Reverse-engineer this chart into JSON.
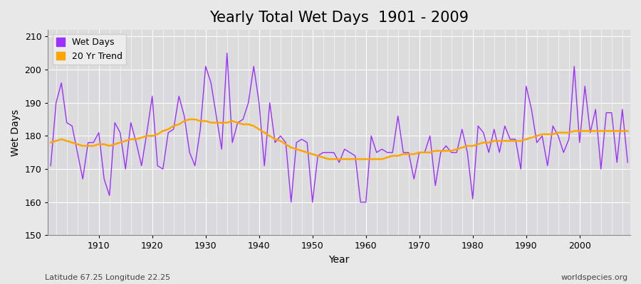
{
  "title": "Yearly Total Wet Days  1901 - 2009",
  "xlabel": "Year",
  "ylabel": "Wet Days",
  "footnote_left": "Latitude 67.25 Longitude 22.25",
  "footnote_right": "worldspecies.org",
  "years": [
    1901,
    1902,
    1903,
    1904,
    1905,
    1906,
    1907,
    1908,
    1909,
    1910,
    1911,
    1912,
    1913,
    1914,
    1915,
    1916,
    1917,
    1918,
    1919,
    1920,
    1921,
    1922,
    1923,
    1924,
    1925,
    1926,
    1927,
    1928,
    1929,
    1930,
    1931,
    1932,
    1933,
    1934,
    1935,
    1936,
    1937,
    1938,
    1939,
    1940,
    1941,
    1942,
    1943,
    1944,
    1945,
    1946,
    1947,
    1948,
    1949,
    1950,
    1951,
    1952,
    1953,
    1954,
    1955,
    1956,
    1957,
    1958,
    1959,
    1960,
    1961,
    1962,
    1963,
    1964,
    1965,
    1966,
    1967,
    1968,
    1969,
    1970,
    1971,
    1972,
    1973,
    1974,
    1975,
    1976,
    1977,
    1978,
    1979,
    1980,
    1981,
    1982,
    1983,
    1984,
    1985,
    1986,
    1987,
    1988,
    1989,
    1990,
    1991,
    1992,
    1993,
    1994,
    1995,
    1996,
    1997,
    1998,
    1999,
    2000,
    2001,
    2002,
    2003,
    2004,
    2005,
    2006,
    2007,
    2008,
    2009
  ],
  "wet_days": [
    171,
    190,
    196,
    184,
    183,
    175,
    167,
    178,
    178,
    181,
    167,
    162,
    184,
    181,
    170,
    184,
    178,
    171,
    181,
    192,
    171,
    170,
    181,
    182,
    192,
    186,
    175,
    171,
    182,
    201,
    196,
    186,
    176,
    205,
    178,
    184,
    185,
    190,
    201,
    190,
    171,
    190,
    178,
    180,
    178,
    160,
    178,
    179,
    178,
    160,
    174,
    175,
    175,
    175,
    172,
    176,
    175,
    174,
    160,
    160,
    180,
    175,
    176,
    175,
    175,
    186,
    175,
    175,
    167,
    175,
    175,
    180,
    165,
    175,
    177,
    175,
    175,
    182,
    175,
    161,
    183,
    181,
    175,
    182,
    175,
    183,
    179,
    179,
    170,
    195,
    188,
    178,
    180,
    171,
    183,
    180,
    175,
    179,
    201,
    178,
    195,
    181,
    188,
    170,
    187,
    187,
    172,
    188,
    172
  ],
  "trend": [
    178.0,
    178.5,
    179.0,
    178.5,
    178.0,
    177.5,
    177.0,
    177.0,
    177.0,
    177.5,
    177.5,
    177.0,
    177.5,
    178.0,
    178.5,
    179.0,
    179.0,
    179.5,
    180.0,
    180.0,
    180.5,
    181.5,
    182.0,
    183.0,
    183.5,
    184.5,
    185.0,
    185.0,
    184.5,
    184.5,
    184.0,
    184.0,
    184.0,
    184.0,
    184.5,
    184.0,
    183.5,
    183.5,
    183.0,
    182.0,
    181.0,
    180.0,
    179.0,
    178.5,
    177.5,
    176.5,
    176.0,
    175.5,
    175.0,
    174.5,
    174.0,
    173.5,
    173.0,
    173.0,
    173.0,
    173.0,
    173.0,
    173.0,
    173.0,
    173.0,
    173.0,
    173.0,
    173.0,
    173.5,
    174.0,
    174.0,
    174.5,
    174.5,
    174.5,
    175.0,
    175.0,
    175.0,
    175.5,
    175.5,
    175.5,
    175.5,
    176.0,
    176.5,
    177.0,
    177.0,
    177.5,
    178.0,
    178.0,
    178.5,
    178.5,
    178.5,
    178.5,
    178.5,
    178.5,
    179.0,
    179.5,
    180.0,
    180.5,
    180.5,
    180.5,
    181.0,
    181.0,
    181.0,
    181.5,
    181.5,
    181.5,
    181.5,
    181.5,
    181.5,
    181.5,
    181.5,
    181.5,
    181.5,
    181.5
  ],
  "wet_days_color": "#9B30FF",
  "trend_color": "#FFA500",
  "background_color": "#E8E8E8",
  "plot_bg_color": "#DCDCDC",
  "alt_band_color": "#D0D0D8",
  "ylim": [
    150,
    212
  ],
  "yticks": [
    150,
    160,
    170,
    180,
    190,
    200,
    210
  ],
  "grid_color": "#FFFFFF",
  "title_fontsize": 15,
  "axis_label_fontsize": 10,
  "tick_fontsize": 9,
  "footnote_fontsize": 8
}
